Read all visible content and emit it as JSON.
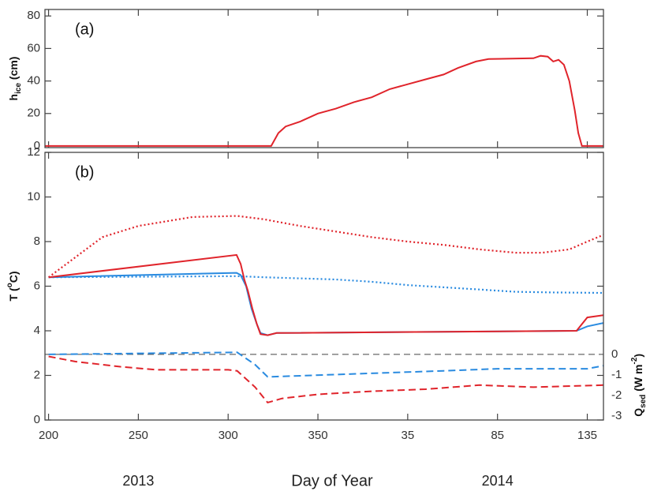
{
  "chart_data": [
    {
      "type": "line",
      "panel_label": "(a)",
      "ylabel": [
        "h",
        "ice",
        " (cm)"
      ],
      "xlim": [
        198,
        509
      ],
      "ylim": [
        -1,
        84
      ],
      "yticks": [
        0,
        20,
        40,
        60,
        80
      ],
      "xticks": [
        200,
        250,
        300,
        350,
        400,
        450,
        500
      ],
      "series": [
        {
          "color": "#e0242b",
          "style": "solid",
          "x": [
            198,
            324,
            328,
            332,
            340,
            350,
            360,
            370,
            380,
            390,
            400,
            410,
            420,
            428,
            438,
            445,
            470,
            474,
            478,
            481,
            484,
            487,
            490,
            493,
            495,
            497,
            509
          ],
          "values": [
            0,
            0,
            8,
            12,
            15,
            20,
            23,
            27,
            30,
            35,
            38,
            41,
            44,
            48,
            52,
            53.5,
            54,
            55.5,
            55,
            52,
            53,
            50,
            40,
            22,
            8,
            0,
            0
          ]
        }
      ]
    },
    {
      "type": "line",
      "panel_label": "(b)",
      "ylabel": [
        "T (",
        "o",
        "C)"
      ],
      "y2label": [
        "Q",
        "sed",
        " (W m",
        "-2",
        ")"
      ],
      "xlabel": "Day of Year",
      "year_labels": [
        {
          "x": 250,
          "label": "2013"
        },
        {
          "x": 450,
          "label": "2014"
        }
      ],
      "xlim": [
        198,
        509
      ],
      "ylim": [
        0,
        12
      ],
      "yticks": [
        0,
        2,
        4,
        6,
        8,
        10,
        12
      ],
      "y2lim": [
        -3.2,
        9.85
      ],
      "y2ticks": [
        0,
        -1,
        -2,
        -3
      ],
      "xticks": [
        200,
        250,
        300,
        350,
        {
          "value": 400,
          "label": "35"
        },
        {
          "value": 450,
          "label": "85"
        },
        {
          "value": 500,
          "label": "135"
        }
      ],
      "zero_line_y2": 0,
      "series": [
        {
          "color": "#e0242b",
          "style": "dotted",
          "x": [
            200,
            230,
            250,
            280,
            305,
            320,
            340,
            360,
            380,
            400,
            420,
            440,
            460,
            475,
            490,
            500,
            509
          ],
          "values": [
            6.4,
            8.2,
            8.7,
            9.1,
            9.15,
            9.0,
            8.7,
            8.45,
            8.2,
            8.0,
            7.85,
            7.65,
            7.5,
            7.5,
            7.65,
            8.0,
            8.3
          ]
        },
        {
          "color": "#2a8be0",
          "style": "dotted",
          "x": [
            200,
            305,
            320,
            340,
            360,
            380,
            400,
            420,
            440,
            460,
            480,
            509
          ],
          "values": [
            6.4,
            6.45,
            6.4,
            6.35,
            6.3,
            6.2,
            6.05,
            5.95,
            5.85,
            5.75,
            5.72,
            5.7
          ]
        },
        {
          "color": "#2a8be0",
          "style": "solid",
          "x": [
            200,
            304.7,
            307,
            310,
            313,
            316,
            318,
            322,
            327,
            494,
            500,
            509
          ],
          "values": [
            6.4,
            6.6,
            6.5,
            6.0,
            5.0,
            4.3,
            3.9,
            3.8,
            3.9,
            4.0,
            4.2,
            4.35
          ]
        },
        {
          "color": "#e0242b",
          "style": "solid",
          "x": [
            200,
            304.7,
            307,
            309,
            311,
            313.5,
            316,
            318,
            322,
            327,
            494,
            500,
            509
          ],
          "values": [
            6.4,
            7.4,
            7.0,
            6.3,
            5.8,
            5.0,
            4.3,
            3.85,
            3.8,
            3.9,
            4.0,
            4.6,
            4.7
          ]
        },
        {
          "color": "#2a8be0",
          "style": "dashed",
          "axis": "y2",
          "x": [
            200,
            305,
            315,
            322,
            420,
            450,
            500,
            509
          ],
          "values": [
            0,
            0.1,
            -0.5,
            -1.1,
            -0.8,
            -0.7,
            -0.7,
            -0.55
          ]
        },
        {
          "color": "#e0242b",
          "style": "dashed",
          "axis": "y2",
          "x": [
            200,
            215,
            240,
            260,
            300,
            305,
            315,
            322,
            330,
            350,
            380,
            410,
            440,
            470,
            509
          ],
          "values": [
            -0.1,
            -0.35,
            -0.6,
            -0.75,
            -0.75,
            -0.8,
            -1.6,
            -2.35,
            -2.15,
            -1.95,
            -1.8,
            -1.7,
            -1.5,
            -1.6,
            -1.5
          ]
        }
      ]
    }
  ]
}
